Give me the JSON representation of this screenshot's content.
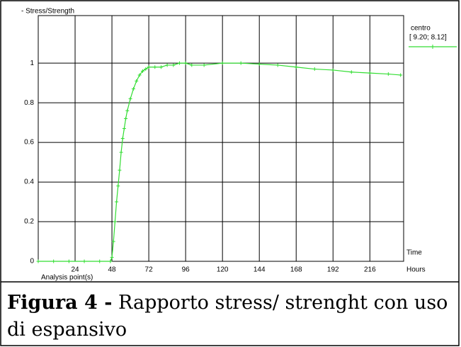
{
  "chart_data": {
    "type": "line",
    "y_label": "- Stress/Strength",
    "x_label": "Analysis point(s)",
    "x_unit_label": "Time",
    "x_unit": "Hours",
    "x": [
      0,
      10,
      20,
      30,
      40,
      47,
      48,
      49,
      50,
      51,
      52,
      53,
      54,
      55,
      56,
      57,
      58,
      60,
      62,
      64,
      66,
      68,
      70,
      72,
      76,
      80,
      84,
      88,
      92,
      96,
      100,
      108,
      120,
      132,
      144,
      156,
      168,
      180,
      192,
      204,
      216,
      228,
      236
    ],
    "series": [
      {
        "name": "centro",
        "location": "[ 9.20; 8.12]",
        "color": "#33dd33",
        "values": [
          0,
          0,
          0,
          0,
          0,
          0,
          0.02,
          0.1,
          0.2,
          0.3,
          0.38,
          0.46,
          0.55,
          0.62,
          0.67,
          0.72,
          0.76,
          0.82,
          0.87,
          0.91,
          0.94,
          0.96,
          0.97,
          0.98,
          0.98,
          0.98,
          0.99,
          0.99,
          1.0,
          1.0,
          0.99,
          0.99,
          1.0,
          1.0,
          0.995,
          0.99,
          0.98,
          0.97,
          0.965,
          0.955,
          0.95,
          0.945,
          0.94
        ]
      }
    ],
    "xlim": [
      0,
      238
    ],
    "xticks": [
      24,
      48,
      72,
      96,
      120,
      144,
      168,
      192,
      216
    ],
    "ylim": [
      0,
      1.24
    ],
    "yticks": [
      0,
      0.2,
      0.4,
      0.6,
      0.8,
      1
    ],
    "grid": true
  },
  "caption": {
    "label": "Figura 4 -",
    "text_line1": "Rapporto stress/ strenght con uso",
    "text_line2": "di espansivo"
  }
}
